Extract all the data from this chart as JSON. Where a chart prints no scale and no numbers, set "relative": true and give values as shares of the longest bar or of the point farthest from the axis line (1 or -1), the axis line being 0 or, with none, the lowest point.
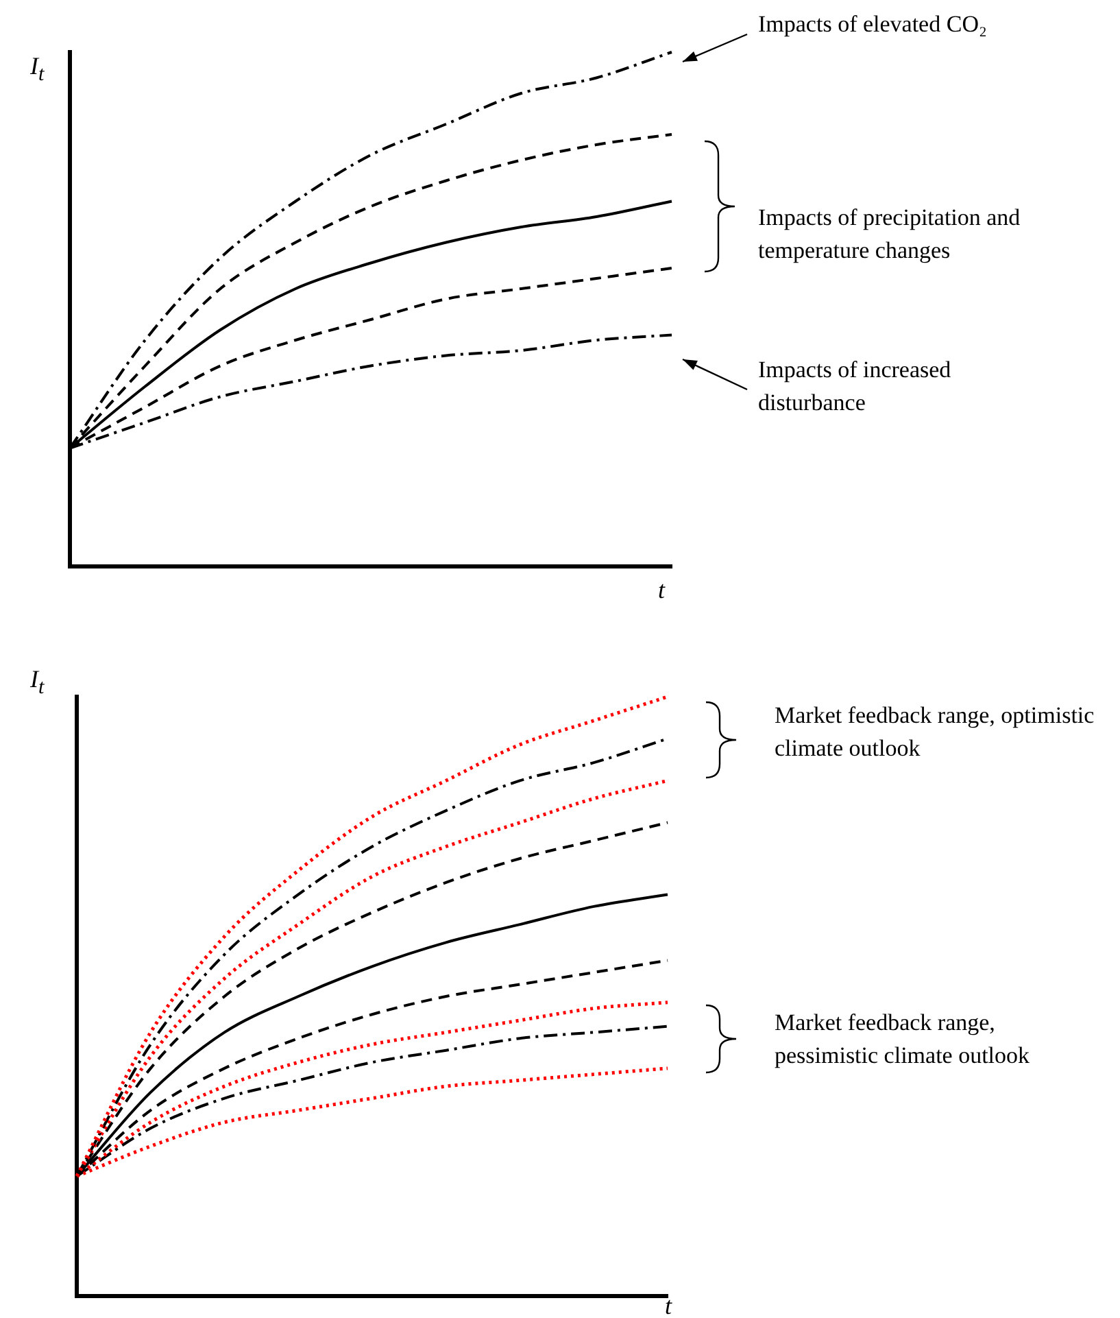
{
  "chart_data": [
    {
      "type": "line",
      "relative": true,
      "xlabel": "t",
      "ylabel": "I$_{t}$",
      "categories": [
        null,
        null,
        null,
        null,
        null,
        null,
        null,
        null,
        null
      ],
      "legend": false,
      "grid": false,
      "marker": "none",
      "series": [
        {
          "color": "#000000",
          "line_style": "dashdot",
          "values": [
            0.23,
            0.44,
            0.6,
            0.71,
            0.8,
            0.86,
            0.92,
            0.95,
            1.0
          ]
        },
        {
          "color": "#000000",
          "line_style": "dashed",
          "values": [
            0.23,
            0.39,
            0.54,
            0.63,
            0.7,
            0.75,
            0.79,
            0.82,
            0.84
          ]
        },
        {
          "color": "#000000",
          "line_style": "solid",
          "values": [
            0.23,
            0.35,
            0.46,
            0.54,
            0.59,
            0.63,
            0.66,
            0.68,
            0.71
          ]
        },
        {
          "color": "#000000",
          "line_style": "dashed",
          "values": [
            0.23,
            0.31,
            0.39,
            0.44,
            0.48,
            0.52,
            0.54,
            0.56,
            0.58
          ]
        },
        {
          "color": "#000000",
          "line_style": "dashdot",
          "values": [
            0.23,
            0.28,
            0.33,
            0.36,
            0.39,
            0.41,
            0.42,
            0.44,
            0.45
          ]
        }
      ],
      "annotations": [
        "Impacts of elevated CO₂",
        "Impacts of precipitation and temperature changes",
        "Impacts of increased disturbance"
      ]
    },
    {
      "type": "line",
      "relative": true,
      "xlabel": "t",
      "ylabel": "I$_{t}$",
      "categories": [
        null,
        null,
        null,
        null,
        null,
        null,
        null,
        null,
        null
      ],
      "legend": false,
      "grid": false,
      "marker": "none",
      "series": [
        {
          "color": "#ff0000",
          "line_style": "dotted",
          "values": [
            0.2,
            0.44,
            0.6,
            0.71,
            0.8,
            0.86,
            0.92,
            0.96,
            1.0
          ]
        },
        {
          "color": "#000000",
          "line_style": "dashdot",
          "values": [
            0.2,
            0.42,
            0.57,
            0.67,
            0.75,
            0.81,
            0.86,
            0.89,
            0.93
          ]
        },
        {
          "color": "#ff0000",
          "line_style": "dotted",
          "values": [
            0.2,
            0.4,
            0.53,
            0.62,
            0.7,
            0.75,
            0.79,
            0.83,
            0.86
          ]
        },
        {
          "color": "#000000",
          "line_style": "dashed",
          "values": [
            0.2,
            0.38,
            0.5,
            0.58,
            0.64,
            0.69,
            0.73,
            0.76,
            0.79
          ]
        },
        {
          "color": "#000000",
          "line_style": "solid",
          "values": [
            0.2,
            0.34,
            0.44,
            0.5,
            0.55,
            0.59,
            0.62,
            0.65,
            0.67
          ]
        },
        {
          "color": "#000000",
          "line_style": "dashed",
          "values": [
            0.2,
            0.31,
            0.38,
            0.43,
            0.47,
            0.5,
            0.52,
            0.54,
            0.56
          ]
        },
        {
          "color": "#ff0000",
          "line_style": "dotted",
          "values": [
            0.2,
            0.29,
            0.35,
            0.39,
            0.42,
            0.44,
            0.46,
            0.48,
            0.49
          ]
        },
        {
          "color": "#000000",
          "line_style": "dashdot",
          "values": [
            0.2,
            0.28,
            0.33,
            0.36,
            0.39,
            0.41,
            0.43,
            0.44,
            0.45
          ]
        },
        {
          "color": "#ff0000",
          "line_style": "dotted",
          "values": [
            0.2,
            0.25,
            0.29,
            0.31,
            0.33,
            0.35,
            0.36,
            0.37,
            0.38
          ]
        }
      ],
      "annotations": [
        "Market feedback range, optimistic climate outlook",
        "Market feedback range, pessimistic climate outlook"
      ]
    }
  ]
}
